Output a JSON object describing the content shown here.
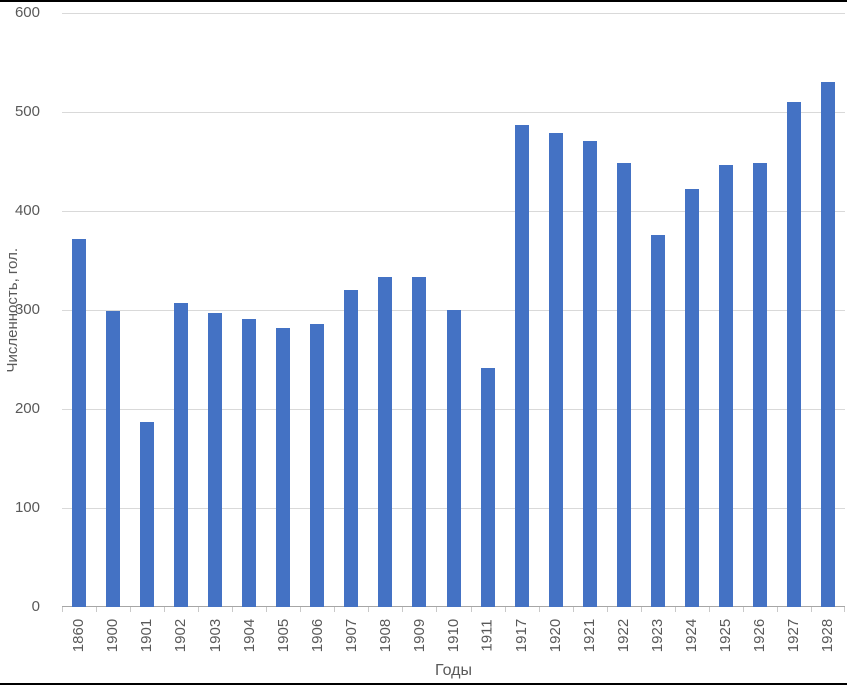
{
  "chart_data": {
    "type": "bar",
    "title": "",
    "xlabel": "Годы",
    "ylabel": "Численность, гол.",
    "categories": [
      "1860",
      "1900",
      "1901",
      "1902",
      "1903",
      "1904",
      "1905",
      "1906",
      "1907",
      "1908",
      "1909",
      "1910",
      "1911",
      "1917",
      "1920",
      "1921",
      "1922",
      "1923",
      "1924",
      "1925",
      "1926",
      "1927",
      "1928"
    ],
    "values": [
      372,
      299,
      187,
      307,
      297,
      291,
      282,
      286,
      320,
      333,
      333,
      300,
      241,
      487,
      479,
      471,
      449,
      376,
      422,
      446,
      449,
      510,
      530
    ],
    "ylim": [
      0,
      600
    ],
    "yticks": [
      0,
      100,
      200,
      300,
      400,
      500,
      600
    ],
    "grid": "horizontal",
    "legend": "none",
    "bar_color": "#4472C4",
    "gridline_color": "#d9d9d9",
    "axis_line_color": "#a6a6a6",
    "label_color": "#595959"
  }
}
